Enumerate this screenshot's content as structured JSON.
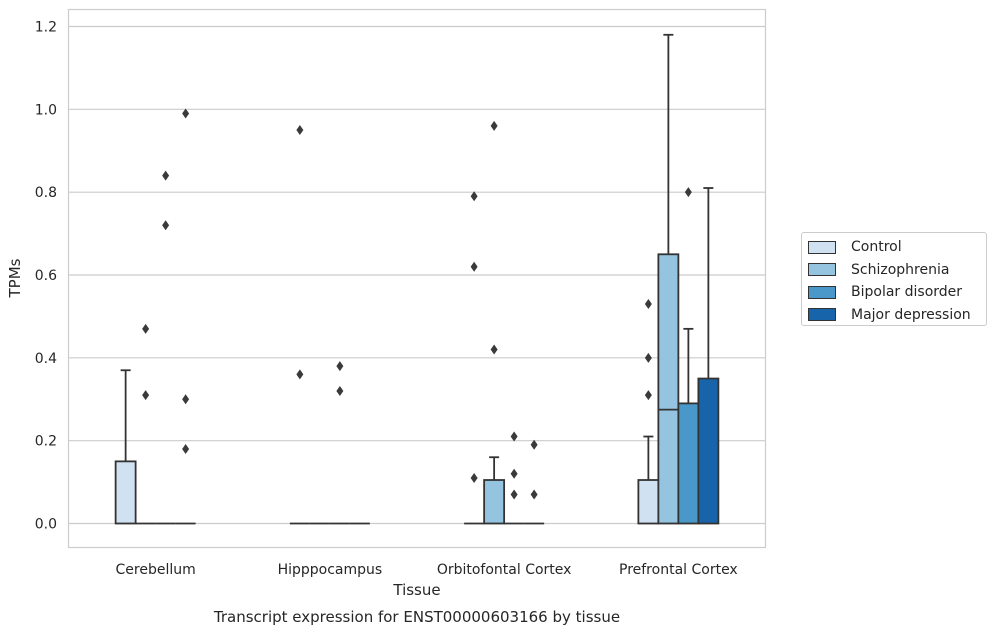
{
  "chart_data": {
    "type": "box",
    "title": "Transcript expression for ENST00000603166 by tissue",
    "xlabel": "Tissue",
    "ylabel": "TPMs",
    "ylim": [
      -0.058,
      1.24
    ],
    "yticks": [
      "0.0",
      "0.2",
      "0.4",
      "0.6",
      "0.8",
      "1.0",
      "1.2"
    ],
    "grid": true,
    "legend_position": "right",
    "categories": [
      "Cerebellum",
      "Hipppocampus",
      "Orbitofontal Cortex",
      "Prefrontal Cortex"
    ],
    "series": [
      {
        "name": "Control",
        "color": "#d0e1f2",
        "boxes": [
          {
            "q1": 0.0,
            "median": 0.0,
            "q3": 0.15,
            "whisker_low": 0.0,
            "whisker_high": 0.37,
            "outliers": []
          },
          {
            "q1": 0.0,
            "median": 0.0,
            "q3": 0.0,
            "whisker_low": 0.0,
            "whisker_high": 0.0,
            "outliers": [
              0.95,
              0.36
            ]
          },
          {
            "q1": 0.0,
            "median": 0.0,
            "q3": 0.0,
            "whisker_low": 0.0,
            "whisker_high": 0.0,
            "outliers": [
              0.79,
              0.62,
              0.11
            ]
          },
          {
            "q1": 0.0,
            "median": 0.0,
            "q3": 0.105,
            "whisker_low": 0.0,
            "whisker_high": 0.21,
            "outliers": [
              0.53,
              0.4,
              0.31
            ]
          }
        ]
      },
      {
        "name": "Schizophrenia",
        "color": "#94c4df",
        "boxes": [
          {
            "q1": 0.0,
            "median": 0.0,
            "q3": 0.0,
            "whisker_low": 0.0,
            "whisker_high": 0.0,
            "outliers": [
              0.47,
              0.31
            ]
          },
          {
            "q1": 0.0,
            "median": 0.0,
            "q3": 0.0,
            "whisker_low": 0.0,
            "whisker_high": 0.0,
            "outliers": []
          },
          {
            "q1": 0.0,
            "median": 0.0,
            "q3": 0.105,
            "whisker_low": 0.0,
            "whisker_high": 0.16,
            "outliers": [
              0.96,
              0.42
            ]
          },
          {
            "q1": 0.0,
            "median": 0.275,
            "q3": 0.65,
            "whisker_low": 0.0,
            "whisker_high": 1.18,
            "outliers": []
          }
        ]
      },
      {
        "name": "Bipolar disorder",
        "color": "#4a98c9",
        "boxes": [
          {
            "q1": 0.0,
            "median": 0.0,
            "q3": 0.0,
            "whisker_low": 0.0,
            "whisker_high": 0.0,
            "outliers": [
              0.84,
              0.72
            ]
          },
          {
            "q1": 0.0,
            "median": 0.0,
            "q3": 0.0,
            "whisker_low": 0.0,
            "whisker_high": 0.0,
            "outliers": [
              0.38,
              0.32
            ]
          },
          {
            "q1": 0.0,
            "median": 0.0,
            "q3": 0.0,
            "whisker_low": 0.0,
            "whisker_high": 0.0,
            "outliers": [
              0.21,
              0.12,
              0.07
            ]
          },
          {
            "q1": 0.0,
            "median": 0.0,
            "q3": 0.29,
            "whisker_low": 0.0,
            "whisker_high": 0.47,
            "outliers": [
              0.8
            ]
          }
        ]
      },
      {
        "name": "Major depression",
        "color": "#1764ab",
        "boxes": [
          {
            "q1": 0.0,
            "median": 0.0,
            "q3": 0.0,
            "whisker_low": 0.0,
            "whisker_high": 0.0,
            "outliers": [
              0.99,
              0.3,
              0.18
            ]
          },
          {
            "q1": 0.0,
            "median": 0.0,
            "q3": 0.0,
            "whisker_low": 0.0,
            "whisker_high": 0.0,
            "outliers": []
          },
          {
            "q1": 0.0,
            "median": 0.0,
            "q3": 0.0,
            "whisker_low": 0.0,
            "whisker_high": 0.0,
            "outliers": [
              0.19,
              0.07
            ]
          },
          {
            "q1": 0.0,
            "median": 0.0,
            "q3": 0.35,
            "whisker_low": 0.0,
            "whisker_high": 0.81,
            "outliers": []
          }
        ]
      }
    ]
  }
}
